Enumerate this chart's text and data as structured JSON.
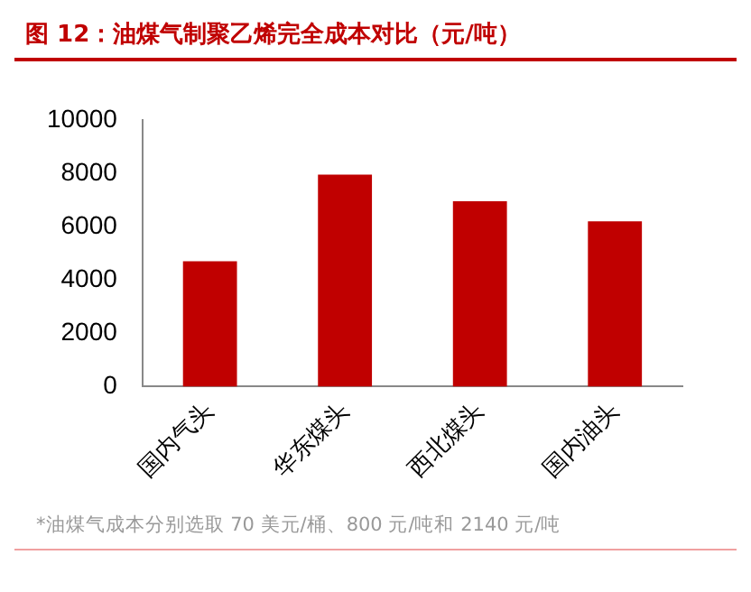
{
  "chart_data": {
    "type": "bar",
    "title": "图 12：油煤气制聚乙烯完全成本对比（元/吨）",
    "categories": [
      "国内气头",
      "华东煤头",
      "西北煤头",
      "国内油头"
    ],
    "values": [
      4700,
      7950,
      6950,
      6200
    ],
    "color": "#c00000",
    "ylim": [
      0,
      10000
    ],
    "yticks": [
      0,
      2000,
      4000,
      6000,
      8000,
      10000
    ],
    "grid": false,
    "legend": false,
    "annotations": [
      "*油煤气成本分别选取 70 美元/桶、800 元/吨和 2140 元/吨"
    ]
  }
}
